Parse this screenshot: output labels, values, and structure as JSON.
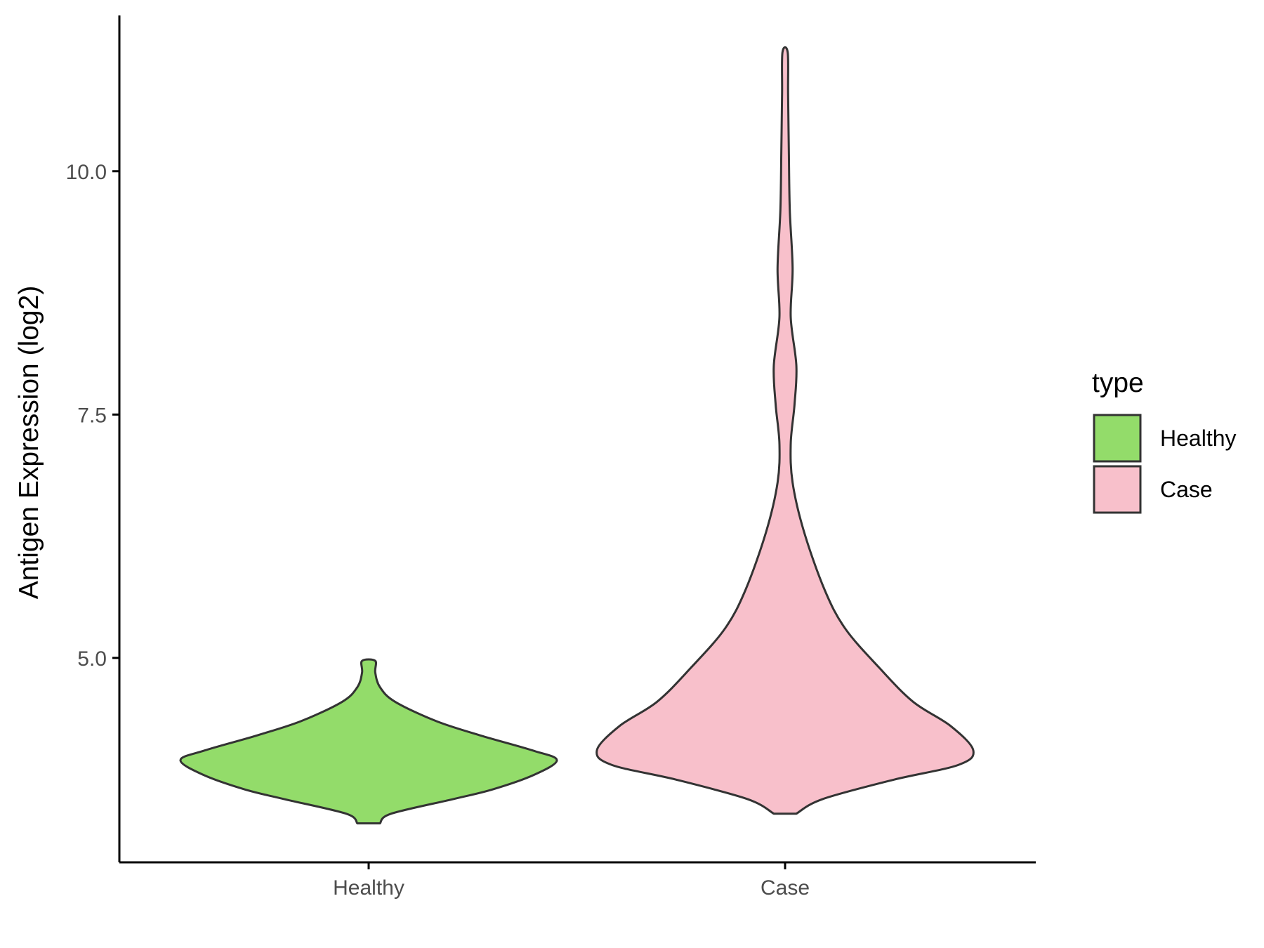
{
  "chart_data": {
    "type": "violin",
    "title": "",
    "xlabel": "",
    "ylabel": "Antigen Expression (log2)",
    "categories": [
      "Healthy",
      "Case"
    ],
    "yticks": [
      "5.0",
      "7.5",
      "10.0"
    ],
    "ytick_values": [
      5.0,
      7.5,
      10.0
    ],
    "ylim": [
      2.9,
      11.6
    ],
    "grid": false,
    "legend": {
      "title": "type",
      "placement": "right",
      "entries": [
        "Healthy",
        "Case"
      ]
    },
    "series": [
      {
        "name": "Healthy",
        "color": "#93dc6a",
        "density": [
          [
            3.3,
            0.06
          ],
          [
            3.4,
            0.12
          ],
          [
            3.55,
            0.45
          ],
          [
            3.65,
            0.66
          ],
          [
            3.8,
            0.88
          ],
          [
            3.95,
            1.0
          ],
          [
            4.05,
            0.87
          ],
          [
            4.2,
            0.6
          ],
          [
            4.35,
            0.36
          ],
          [
            4.55,
            0.14
          ],
          [
            4.7,
            0.06
          ],
          [
            4.85,
            0.035
          ],
          [
            4.97,
            0.035
          ]
        ]
      },
      {
        "name": "Case",
        "color": "#f8c0cb",
        "density": [
          [
            3.4,
            0.06
          ],
          [
            3.55,
            0.2
          ],
          [
            3.75,
            0.58
          ],
          [
            3.9,
            0.92
          ],
          [
            4.05,
            1.0
          ],
          [
            4.3,
            0.88
          ],
          [
            4.55,
            0.68
          ],
          [
            4.9,
            0.5
          ],
          [
            5.3,
            0.32
          ],
          [
            5.7,
            0.21
          ],
          [
            6.3,
            0.1
          ],
          [
            6.8,
            0.04
          ],
          [
            7.2,
            0.03
          ],
          [
            7.6,
            0.05
          ],
          [
            8.0,
            0.06
          ],
          [
            8.5,
            0.03
          ],
          [
            9.0,
            0.04
          ],
          [
            9.6,
            0.025
          ],
          [
            10.2,
            0.02
          ],
          [
            10.8,
            0.016
          ],
          [
            11.22,
            0.014
          ]
        ]
      }
    ]
  },
  "colors": {
    "outline": "#333333",
    "axis": "#000000"
  }
}
